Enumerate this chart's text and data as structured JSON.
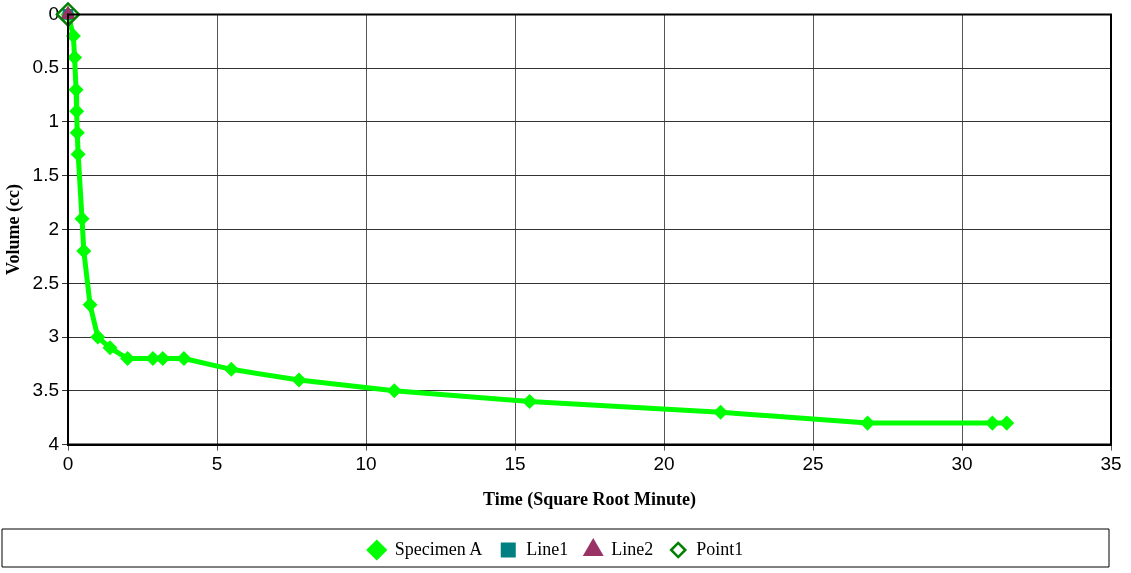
{
  "chart_data": {
    "type": "line",
    "xlabel": "Time (Square Root Minute)",
    "ylabel": "Volume (cc)",
    "xlim": [
      0,
      35
    ],
    "xticks": [
      0,
      5,
      10,
      15,
      20,
      25,
      30,
      35
    ],
    "ylim": [
      4,
      0
    ],
    "yticks": [
      0,
      0.5,
      1,
      1.5,
      2,
      2.5,
      3,
      3.5,
      4
    ],
    "grid": true,
    "legend": "bottom",
    "series": [
      {
        "name": "Specimen A",
        "color": "#00ff00",
        "marker": "diamond",
        "x": [
          0,
          0.18,
          0.22,
          0.27,
          0.29,
          0.31,
          0.34,
          0.47,
          0.53,
          0.74,
          1.0,
          1.41,
          2.0,
          2.85,
          3.18,
          3.89,
          5.48,
          7.75,
          10.95,
          15.49,
          21.9,
          26.83,
          31.02,
          31.5
        ],
        "values": [
          0,
          0.2,
          0.4,
          0.7,
          0.9,
          1.1,
          1.3,
          1.9,
          2.2,
          2.7,
          3.0,
          3.1,
          3.2,
          3.2,
          3.2,
          3.2,
          3.3,
          3.4,
          3.5,
          3.6,
          3.7,
          3.8,
          3.8,
          3.8
        ]
      },
      {
        "name": "Line1",
        "color": "#008080",
        "marker": "square",
        "x": [
          0
        ],
        "values": [
          0
        ]
      },
      {
        "name": "Line2",
        "color": "#993366",
        "marker": "triangle",
        "x": [
          0
        ],
        "values": [
          0
        ]
      },
      {
        "name": "Point1",
        "type": "scatter",
        "color": "#008000",
        "marker": "diamond",
        "x": [
          0
        ],
        "values": [
          0
        ]
      }
    ]
  }
}
